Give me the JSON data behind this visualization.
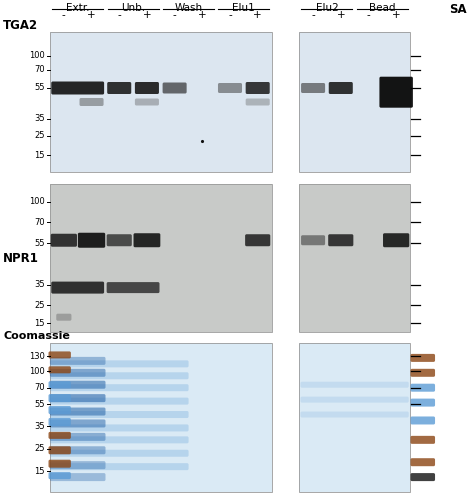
{
  "background_color": "#ffffff",
  "panel1_bg": "#dce6f0",
  "panel2_bg": "#c8cac8",
  "panel3_bg": "#daeaf5",
  "fraction_labels": [
    "Extr.",
    "Unb.",
    "Wash",
    "Elu1",
    "Elu2",
    "Bead"
  ],
  "plus_minus_labels": [
    "-",
    "+",
    "-",
    "+",
    "-",
    "+",
    "-",
    "+",
    "-",
    "+",
    "-",
    "+"
  ],
  "sa_label": "SA",
  "tga2_label": "TGA2",
  "npr1_label": "NPR1",
  "coom_label": "Coomassie",
  "p1_mw": {
    "100": 0.83,
    "70": 0.73,
    "55": 0.6,
    "35": 0.38,
    "25": 0.26,
    "15": 0.12
  },
  "p2_mw": {
    "100": 0.88,
    "70": 0.74,
    "55": 0.6,
    "35": 0.32,
    "25": 0.18,
    "15": 0.06
  },
  "p3_mw": {
    "130": 0.91,
    "100": 0.81,
    "70": 0.7,
    "55": 0.59,
    "35": 0.44,
    "25": 0.29,
    "15": 0.14
  }
}
